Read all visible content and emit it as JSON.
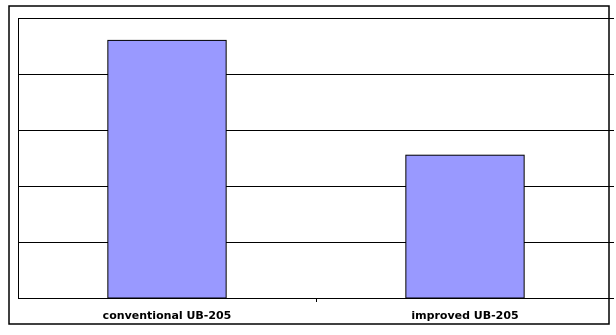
{
  "chart_data": {
    "type": "bar",
    "categories": [
      "conventional UB-205",
      "improved UB-205"
    ],
    "values": [
      4.6,
      2.55
    ],
    "title": "",
    "xlabel": "",
    "ylabel": "",
    "ylim": [
      0,
      5
    ],
    "y_ticks_shown": false,
    "grid": true,
    "legend": "none",
    "bar_color": "#9999ff",
    "bar_stroke": "#000000"
  }
}
